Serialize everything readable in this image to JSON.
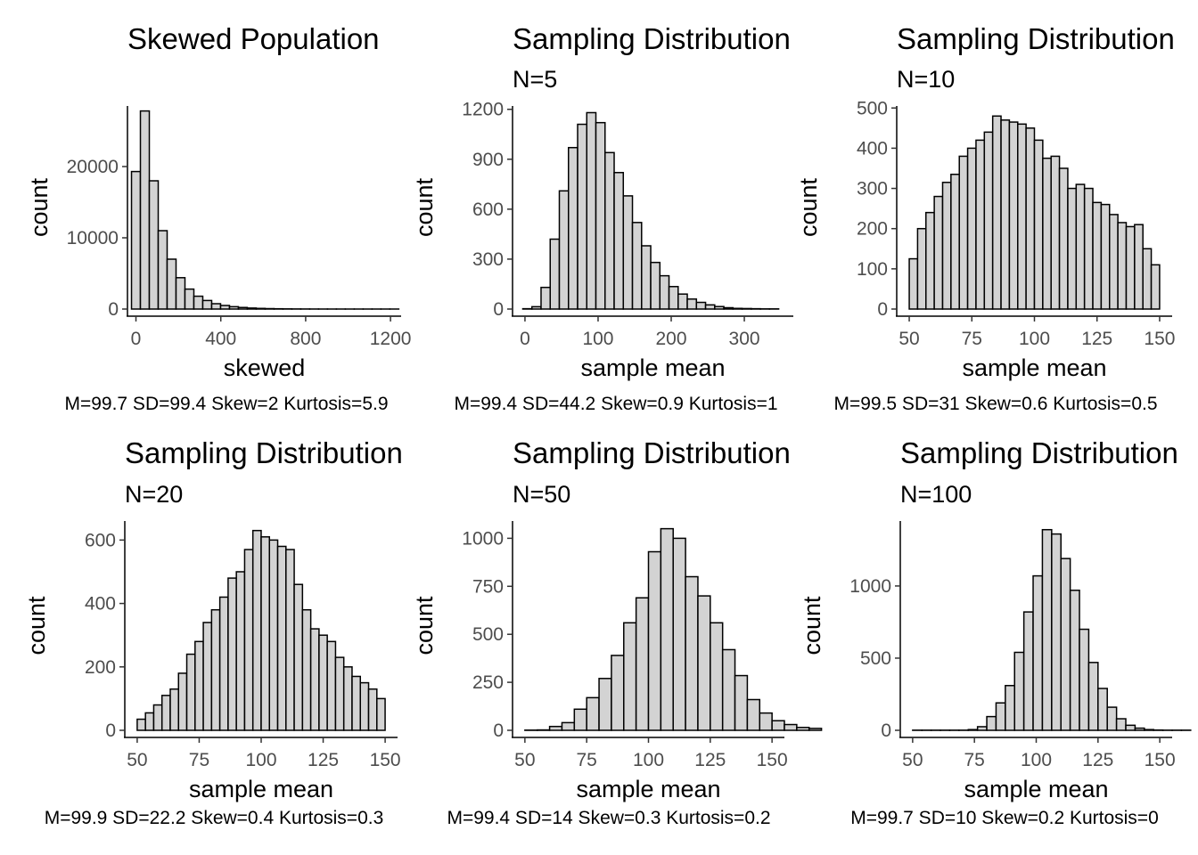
{
  "colors": {
    "bar_fill": "#d3d3d3",
    "bar_stroke": "#000000",
    "tick_text": "#4d4d4d"
  },
  "chart_data": [
    {
      "type": "bar",
      "title": "Skewed Population",
      "subtitle": "",
      "xlabel": "skewed",
      "ylabel": "count",
      "caption": "M=99.7 SD=99.4 Skew=2 Kurtosis=5.9",
      "xlim": [
        -40,
        1250
      ],
      "ylim": [
        0,
        28500
      ],
      "xticks": [
        0,
        400,
        800,
        1200
      ],
      "yticks": [
        0,
        10000,
        20000
      ],
      "bin_start": -21,
      "bin_width": 42,
      "values": [
        19300,
        27800,
        18000,
        11000,
        7000,
        4400,
        2800,
        1800,
        1200,
        750,
        500,
        330,
        220,
        140,
        90,
        60,
        40,
        25,
        15,
        10,
        6,
        4,
        3,
        2,
        1,
        1,
        1,
        1,
        1,
        1
      ],
      "grid": false,
      "legend": "none"
    },
    {
      "type": "bar",
      "title": "Sampling Distribution",
      "subtitle": "N=5",
      "xlabel": "sample mean",
      "ylabel": "count",
      "caption": "M=99.4 SD=44.2 Skew=0.9 Kurtosis=1",
      "xlim": [
        -17,
        367
      ],
      "ylim": [
        0,
        1220
      ],
      "xticks": [
        0,
        100,
        200,
        300
      ],
      "yticks": [
        0,
        300,
        600,
        900,
        1200
      ],
      "bin_start": -3,
      "bin_width": 12.5,
      "values": [
        2,
        14,
        130,
        420,
        710,
        970,
        1110,
        1180,
        1120,
        940,
        820,
        680,
        520,
        380,
        280,
        200,
        135,
        90,
        60,
        40,
        25,
        15,
        8,
        4,
        3,
        2,
        1,
        1,
        0,
        0
      ],
      "grid": false,
      "legend": "none"
    },
    {
      "type": "bar",
      "title": "Sampling Distribution",
      "subtitle": "N=10",
      "xlabel": "sample mean",
      "ylabel": "count",
      "caption": "M=99.5 SD=31 Skew=0.6 Kurtosis=0.5",
      "xlim": [
        45,
        155
      ],
      "ylim": [
        0,
        505
      ],
      "xticks": [
        50,
        75,
        100,
        125,
        150
      ],
      "yticks": [
        0,
        100,
        200,
        300,
        400,
        500
      ],
      "bin_start": 50,
      "bin_width": 3.333,
      "values": [
        125,
        200,
        240,
        280,
        315,
        335,
        380,
        400,
        420,
        440,
        480,
        470,
        465,
        460,
        450,
        420,
        375,
        380,
        350,
        300,
        310,
        300,
        265,
        260,
        235,
        215,
        205,
        210,
        150,
        110
      ],
      "grid": false,
      "legend": "none"
    },
    {
      "type": "bar",
      "title": "Sampling Distribution",
      "subtitle": "N=20",
      "xlabel": "sample mean",
      "ylabel": "count",
      "caption": "M=99.9 SD=22.2 Skew=0.4 Kurtosis=0.3",
      "xlim": [
        45,
        155
      ],
      "ylim": [
        0,
        660
      ],
      "xticks": [
        50,
        75,
        100,
        125,
        150
      ],
      "yticks": [
        0,
        200,
        400,
        600
      ],
      "bin_start": 50,
      "bin_width": 3.333,
      "values": [
        35,
        55,
        80,
        110,
        130,
        180,
        240,
        280,
        340,
        380,
        420,
        480,
        500,
        570,
        630,
        610,
        600,
        580,
        570,
        460,
        380,
        320,
        300,
        280,
        230,
        200,
        170,
        150,
        130,
        100
      ],
      "grid": false,
      "legend": "none"
    },
    {
      "type": "bar",
      "title": "Sampling Distribution",
      "subtitle": "N=50",
      "xlabel": "sample mean",
      "ylabel": "count",
      "caption": "M=99.4 SD=14 Skew=0.3 Kurtosis=0.2",
      "xlim": [
        45,
        155
      ],
      "ylim": [
        0,
        1090
      ],
      "xticks": [
        50,
        75,
        100,
        125,
        150
      ],
      "yticks": [
        0,
        250,
        500,
        750,
        1000
      ],
      "bin_start": 50,
      "bin_width": 5,
      "values": [
        1,
        2,
        20,
        40,
        110,
        170,
        270,
        390,
        560,
        690,
        930,
        1050,
        1000,
        800,
        700,
        560,
        420,
        285,
        160,
        90,
        50,
        30,
        15,
        10
      ],
      "grid": false,
      "legend": "none"
    },
    {
      "type": "bar",
      "title": "Sampling Distribution",
      "subtitle": "N=100",
      "xlabel": "sample mean",
      "ylabel": "count",
      "caption": "M=99.7 SD=10 Skew=0.2 Kurtosis=0",
      "xlim": [
        45,
        155
      ],
      "ylim": [
        0,
        1450
      ],
      "xticks": [
        50,
        75,
        100,
        125,
        150
      ],
      "yticks": [
        0,
        500,
        1000
      ],
      "bin_start": 50,
      "bin_width": 3.75,
      "values": [
        1,
        1,
        1,
        1,
        1,
        1,
        5,
        25,
        95,
        190,
        310,
        540,
        820,
        1070,
        1390,
        1360,
        1190,
        970,
        700,
        470,
        290,
        160,
        80,
        35,
        15,
        5,
        2,
        1,
        1,
        1
      ],
      "grid": false,
      "legend": "none"
    }
  ]
}
